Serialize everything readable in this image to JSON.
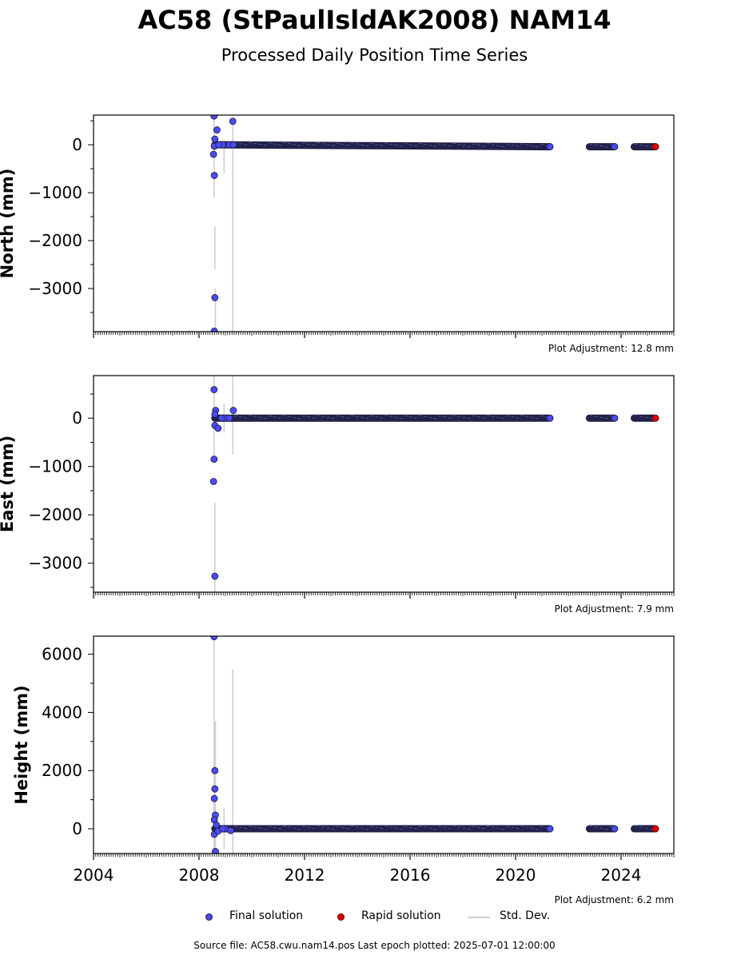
{
  "header": {
    "title": "AC58 (StPaulIsldAK2008) NAM14",
    "subtitle": "Processed Daily Position Time Series"
  },
  "legend": {
    "final": "Final solution",
    "rapid": "Rapid solution",
    "std": "Std. Dev."
  },
  "footer": {
    "source": "Source file: AC58.cwu.nam14.pos  Last epoch plotted: 2025-07-01 12:00:00"
  },
  "colors": {
    "final": "#4b4bf0",
    "final_edge": "#1a1a40",
    "rapid": "#e00000",
    "std": "#cfcfcf"
  },
  "chart_data": [
    {
      "type": "scatter",
      "ylabel": "North (mm)",
      "adjustment": "Plot Adjustment: 12.8 mm",
      "xlim": [
        2004,
        2026
      ],
      "ylim": [
        -3900,
        620
      ],
      "yticks": [
        0,
        -1000,
        -2000,
        -3000
      ],
      "ytick_labels": [
        "0",
        "−1000",
        "−2000",
        "−3000"
      ],
      "xticks": [
        2004,
        2008,
        2012,
        2016,
        2020,
        2024
      ],
      "xtick_labels": [],
      "grid": false,
      "segments": [
        {
          "from": 2008.6,
          "to": 2021.3,
          "y_start": 0,
          "y_end": -40
        },
        {
          "from": 2022.8,
          "to": 2023.75,
          "y_start": -40,
          "y_end": -40
        },
        {
          "from": 2024.5,
          "to": 2025.3,
          "y_start": -40,
          "y_end": -40
        }
      ],
      "outliers": [
        {
          "x": 2008.57,
          "y": 600
        },
        {
          "x": 2008.68,
          "y": 310
        },
        {
          "x": 2008.6,
          "y": 120
        },
        {
          "x": 2008.58,
          "y": -30
        },
        {
          "x": 2008.55,
          "y": -200
        },
        {
          "x": 2008.58,
          "y": -640
        },
        {
          "x": 2008.6,
          "y": -3190
        },
        {
          "x": 2008.58,
          "y": -3890
        },
        {
          "x": 2009.28,
          "y": 490
        },
        {
          "x": 2009.05,
          "y": 0
        },
        {
          "x": 2009.15,
          "y": 0
        },
        {
          "x": 2008.9,
          "y": 0
        },
        {
          "x": 2009.3,
          "y": 0
        },
        {
          "x": 2008.75,
          "y": 0
        }
      ],
      "endpoints": [
        {
          "x": 2021.3,
          "y": -40
        },
        {
          "x": 2023.75,
          "y": -40
        }
      ],
      "rapid": [
        {
          "x": 2025.3,
          "y": -40
        }
      ],
      "std_bars": [
        {
          "x": 2008.57,
          "lo": -1100,
          "hi": 620
        },
        {
          "x": 2008.6,
          "lo": -2600,
          "hi": -1700
        },
        {
          "x": 2008.62,
          "lo": -3900,
          "hi": -3000
        },
        {
          "x": 2008.95,
          "lo": -600,
          "hi": 100
        },
        {
          "x": 2009.28,
          "lo": -3900,
          "hi": 500
        }
      ]
    },
    {
      "type": "scatter",
      "ylabel": "East (mm)",
      "adjustment": "Plot Adjustment: 7.9 mm",
      "xlim": [
        2004,
        2026
      ],
      "ylim": [
        -3600,
        880
      ],
      "yticks": [
        0,
        -1000,
        -2000,
        -3000
      ],
      "ytick_labels": [
        "0",
        "−1000",
        "−2000",
        "−3000"
      ],
      "xticks": [
        2004,
        2008,
        2012,
        2016,
        2020,
        2024
      ],
      "xtick_labels": [],
      "grid": false,
      "segments": [
        {
          "from": 2008.6,
          "to": 2021.3,
          "y_start": 0,
          "y_end": 0
        },
        {
          "from": 2022.8,
          "to": 2023.75,
          "y_start": 0,
          "y_end": 0
        },
        {
          "from": 2024.5,
          "to": 2025.3,
          "y_start": 0,
          "y_end": 0
        }
      ],
      "outliers": [
        {
          "x": 2008.57,
          "y": 590
        },
        {
          "x": 2008.63,
          "y": 160
        },
        {
          "x": 2008.6,
          "y": 80
        },
        {
          "x": 2008.6,
          "y": -150
        },
        {
          "x": 2008.72,
          "y": -210
        },
        {
          "x": 2008.57,
          "y": -850
        },
        {
          "x": 2008.55,
          "y": -1310
        },
        {
          "x": 2008.6,
          "y": -3270
        },
        {
          "x": 2009.3,
          "y": 160
        },
        {
          "x": 2009.0,
          "y": 0
        },
        {
          "x": 2009.15,
          "y": 0
        },
        {
          "x": 2008.85,
          "y": 0
        }
      ],
      "endpoints": [
        {
          "x": 2021.3,
          "y": 0
        },
        {
          "x": 2023.75,
          "y": 0
        }
      ],
      "rapid": [
        {
          "x": 2025.3,
          "y": 0
        }
      ],
      "std_bars": [
        {
          "x": 2008.57,
          "lo": -900,
          "hi": 880
        },
        {
          "x": 2008.6,
          "lo": -3600,
          "hi": -1750
        },
        {
          "x": 2008.95,
          "lo": -300,
          "hi": 300
        },
        {
          "x": 2009.28,
          "lo": -750,
          "hi": 880
        }
      ]
    },
    {
      "type": "scatter",
      "ylabel": "Height (mm)",
      "adjustment": "Plot Adjustment: 6.2 mm",
      "xlim": [
        2004,
        2026
      ],
      "ylim": [
        -850,
        6620
      ],
      "yticks": [
        0,
        2000,
        4000,
        6000
      ],
      "ytick_labels": [
        "0",
        "2000",
        "4000",
        "6000"
      ],
      "xticks": [
        2004,
        2008,
        2012,
        2016,
        2020,
        2024
      ],
      "xtick_labels": [
        "2004",
        "2008",
        "2012",
        "2016",
        "2020",
        "2024"
      ],
      "grid": false,
      "segments": [
        {
          "from": 2008.6,
          "to": 2021.3,
          "y_start": 0,
          "y_end": 0
        },
        {
          "from": 2022.8,
          "to": 2023.75,
          "y_start": 0,
          "y_end": 0
        },
        {
          "from": 2024.5,
          "to": 2025.3,
          "y_start": 0,
          "y_end": 0
        }
      ],
      "outliers": [
        {
          "x": 2008.57,
          "y": 6600
        },
        {
          "x": 2008.6,
          "y": 2000
        },
        {
          "x": 2008.6,
          "y": 1370
        },
        {
          "x": 2008.58,
          "y": 1040
        },
        {
          "x": 2008.62,
          "y": 470
        },
        {
          "x": 2008.58,
          "y": 310
        },
        {
          "x": 2008.66,
          "y": 130
        },
        {
          "x": 2008.58,
          "y": -190
        },
        {
          "x": 2008.62,
          "y": -780
        },
        {
          "x": 2008.72,
          "y": -80
        },
        {
          "x": 2009.0,
          "y": 0
        },
        {
          "x": 2009.2,
          "y": -60
        },
        {
          "x": 2008.9,
          "y": 0
        }
      ],
      "endpoints": [
        {
          "x": 2021.3,
          "y": 0
        },
        {
          "x": 2023.75,
          "y": 0
        }
      ],
      "rapid": [
        {
          "x": 2025.3,
          "y": 0
        }
      ],
      "std_bars": [
        {
          "x": 2008.57,
          "lo": -850,
          "hi": 6620
        },
        {
          "x": 2008.62,
          "lo": -850,
          "hi": 3700
        },
        {
          "x": 2008.95,
          "lo": -700,
          "hi": 700
        },
        {
          "x": 2009.28,
          "lo": -850,
          "hi": 5480
        }
      ]
    }
  ]
}
